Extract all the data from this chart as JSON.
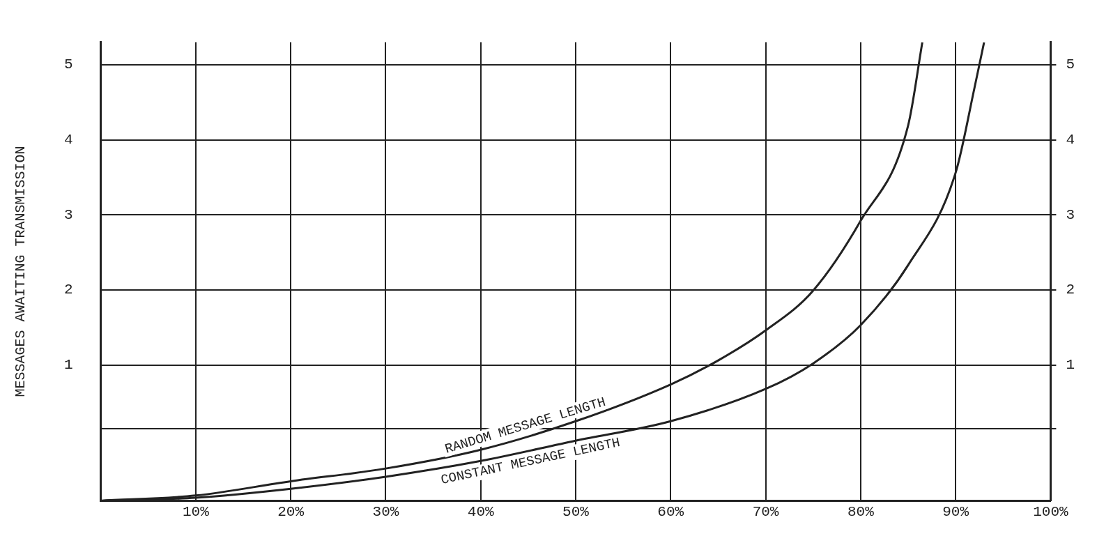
{
  "chart_data": {
    "type": "line",
    "ylabel": "MESSAGES AWAITING TRANSMISSION",
    "series": [
      {
        "name": "RANDOM MESSAGE LENGTH",
        "color": "#222222",
        "x": [
          0,
          10,
          20,
          30,
          40,
          50,
          60,
          65,
          70,
          75,
          80,
          85,
          86.5
        ],
        "values": [
          -0.81,
          -0.74,
          -0.55,
          -0.38,
          -0.13,
          0.25,
          0.74,
          1.06,
          1.46,
          1.99,
          2.92,
          4.19,
          5.3
        ]
      },
      {
        "name": "CONSTANT MESSAGE LENGTH",
        "color": "#222222",
        "x": [
          0,
          10,
          20,
          30,
          40,
          50,
          60,
          70,
          75,
          80,
          85,
          90,
          92,
          93
        ],
        "values": [
          -0.81,
          -0.77,
          -0.65,
          -0.49,
          -0.28,
          -0.01,
          0.25,
          0.68,
          1.02,
          1.53,
          2.33,
          3.56,
          4.7,
          5.3
        ]
      }
    ],
    "xlim": [
      0,
      100
    ],
    "xticks": [
      {
        "value": 10,
        "label": "10%"
      },
      {
        "value": 20,
        "label": "20%"
      },
      {
        "value": 30,
        "label": "30%"
      },
      {
        "value": 40,
        "label": "40%"
      },
      {
        "value": 50,
        "label": "50%"
      },
      {
        "value": 60,
        "label": "60%"
      },
      {
        "value": 70,
        "label": "70%"
      },
      {
        "value": 80,
        "label": "80%"
      },
      {
        "value": 90,
        "label": "90%"
      },
      {
        "value": 100,
        "label": "100%"
      }
    ],
    "ylim": [
      -0.81,
      5.3
    ],
    "yticks": [
      {
        "value": 0.15,
        "label": null
      },
      1,
      2,
      3,
      4,
      5
    ],
    "y2lim": [
      -0.81,
      5.3
    ],
    "y2ticks": [
      {
        "value": 0.15,
        "label": null
      },
      1,
      2,
      3,
      4,
      5
    ],
    "grid": true,
    "legend": false,
    "marker": "none",
    "line_style": "solid"
  }
}
